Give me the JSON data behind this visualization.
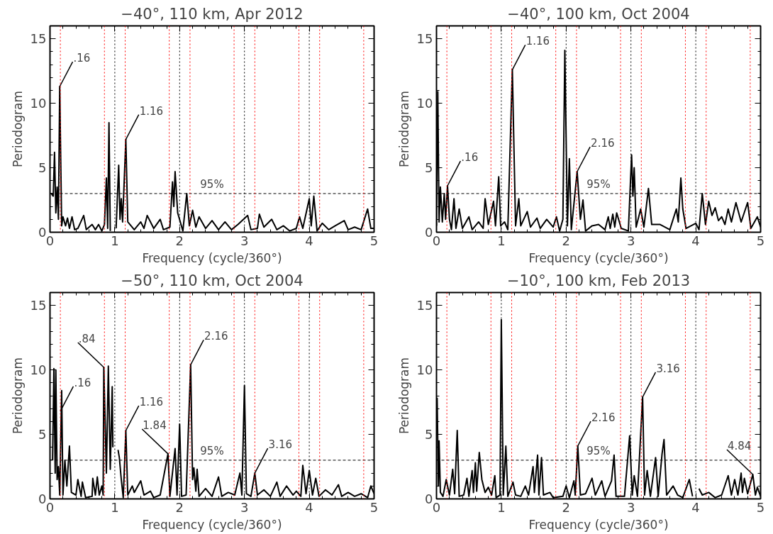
{
  "chart_data": [
    {
      "type": "line",
      "title": "−40°, 110 km, Apr 2012",
      "xlabel": "Frequency (cycle/360°)",
      "ylabel": "Periodogram",
      "xlim": [
        0,
        5
      ],
      "ylim": [
        0,
        16
      ],
      "xticks": [
        0,
        1,
        2,
        3,
        4,
        5
      ],
      "yticks": [
        0,
        5,
        10,
        15
      ],
      "grid": false,
      "marker": "none",
      "line_style": "solid",
      "x": [
        0.02,
        0.05,
        0.07,
        0.09,
        0.11,
        0.13,
        0.15,
        0.18,
        0.2,
        0.24,
        0.27,
        0.3,
        0.34,
        0.38,
        0.43,
        0.52,
        0.56,
        0.65,
        0.7,
        0.75,
        0.8,
        0.84,
        0.87,
        0.89,
        0.91,
        0.93,
        0.98,
        1.0,
        1.02,
        1.06,
        1.08,
        1.1,
        1.12,
        1.17,
        1.2,
        1.25,
        1.3,
        1.4,
        1.45,
        1.5,
        1.6,
        1.7,
        1.75,
        1.85,
        1.89,
        1.91,
        1.93,
        1.97,
        2.05,
        2.11,
        2.15,
        2.2,
        2.25,
        2.3,
        2.4,
        2.5,
        2.6,
        2.7,
        2.8,
        2.9,
        3.05,
        3.1,
        3.2,
        3.23,
        3.3,
        3.42,
        3.5,
        3.6,
        3.7,
        3.8,
        3.85,
        3.9,
        4.0,
        4.03,
        4.07,
        4.12,
        4.2,
        4.3,
        4.4,
        4.54,
        4.6,
        4.7,
        4.8,
        4.9,
        4.95,
        5.0
      ],
      "series": [
        {
          "color": "#000000",
          "values": [
            3.0,
            2.8,
            6.2,
            1.5,
            3.5,
            1.0,
            11.3,
            0.5,
            1.2,
            0.5,
            1.1,
            0.3,
            1.2,
            0.2,
            0.3,
            1.3,
            0.2,
            0.6,
            0.2,
            0.6,
            0.1,
            0.6,
            4.2,
            0.3,
            8.5,
            0.1,
            null,
            null,
            0.3,
            5.2,
            1.0,
            2.6,
            0.8,
            7.2,
            0.8,
            0.5,
            0.2,
            0.8,
            0.3,
            1.3,
            0.3,
            1.0,
            0.2,
            0.4,
            3.9,
            2.0,
            4.7,
            1.5,
            0.1,
            3.0,
            0.5,
            1.7,
            0.4,
            1.2,
            0.3,
            0.9,
            0.2,
            0.8,
            0.2,
            0.6,
            1.3,
            0.2,
            0.3,
            1.4,
            0.4,
            1.0,
            0.2,
            0.5,
            0.1,
            0.3,
            1.2,
            0.3,
            2.6,
            0.5,
            2.8,
            0.1,
            0.7,
            0.2,
            0.5,
            0.9,
            0.2,
            0.4,
            0.2,
            1.8,
            0.3,
            0.3
          ]
        }
      ],
      "ref_lines": [
        {
          "axis": "y",
          "value": 3,
          "color": "#000000",
          "line_style": "dashed"
        },
        {
          "axis": "x",
          "value": 0.16,
          "color": "#ff0000",
          "line_style": "dotted"
        },
        {
          "axis": "x",
          "value": 0.84,
          "color": "#ff0000",
          "line_style": "dotted"
        },
        {
          "axis": "x",
          "value": 1,
          "color": "#000000",
          "line_style": "dotted"
        },
        {
          "axis": "x",
          "value": 1.16,
          "color": "#ff0000",
          "line_style": "dotted"
        },
        {
          "axis": "x",
          "value": 1.84,
          "color": "#ff0000",
          "line_style": "dotted"
        },
        {
          "axis": "x",
          "value": 2,
          "color": "#000000",
          "line_style": "dotted"
        },
        {
          "axis": "x",
          "value": 2.16,
          "color": "#ff0000",
          "line_style": "dotted"
        },
        {
          "axis": "x",
          "value": 2.84,
          "color": "#ff0000",
          "line_style": "dotted"
        },
        {
          "axis": "x",
          "value": 3,
          "color": "#000000",
          "line_style": "dotted"
        },
        {
          "axis": "x",
          "value": 3.16,
          "color": "#ff0000",
          "line_style": "dotted"
        },
        {
          "axis": "x",
          "value": 3.84,
          "color": "#ff0000",
          "line_style": "dotted"
        },
        {
          "axis": "x",
          "value": 4,
          "color": "#000000",
          "line_style": "dotted"
        },
        {
          "axis": "x",
          "value": 4.16,
          "color": "#ff0000",
          "line_style": "dotted"
        },
        {
          "axis": "x",
          "value": 4.84,
          "color": "#ff0000",
          "line_style": "dotted"
        }
      ],
      "annotations": [
        "95%",
        {
          "text": ".16",
          "x": 0.15,
          "y": 11.3
        },
        {
          "text": "1.16",
          "x": 1.17,
          "y": 7.2
        }
      ]
    },
    {
      "type": "line",
      "title": "−40°, 100 km, Oct 2004",
      "xlabel": "Frequency (cycle/360°)",
      "ylabel": "Periodogram",
      "xlim": [
        0,
        5
      ],
      "ylim": [
        0,
        16
      ],
      "xticks": [
        0,
        1,
        2,
        3,
        4,
        5
      ],
      "yticks": [
        0,
        5,
        10,
        15
      ],
      "grid": false,
      "marker": "none",
      "line_style": "solid",
      "x": [
        0,
        0.02,
        0.04,
        0.06,
        0.09,
        0.12,
        0.14,
        0.17,
        0.2,
        0.23,
        0.27,
        0.3,
        0.35,
        0.4,
        0.5,
        0.55,
        0.65,
        0.72,
        0.75,
        0.8,
        0.88,
        0.91,
        0.96,
        0.99,
        1.05,
        1.1,
        1.17,
        1.22,
        1.27,
        1.3,
        1.4,
        1.45,
        1.55,
        1.6,
        1.7,
        1.8,
        1.85,
        1.9,
        1.95,
        1.98,
        2.02,
        2.05,
        2.08,
        2.17,
        2.22,
        2.26,
        2.3,
        2.4,
        2.5,
        2.6,
        2.65,
        2.68,
        2.72,
        2.75,
        2.78,
        2.85,
        2.96,
        3.01,
        3.03,
        3.05,
        3.08,
        3.15,
        3.2,
        3.27,
        3.32,
        3.45,
        3.6,
        3.7,
        3.73,
        3.77,
        3.8,
        3.85,
        4.0,
        4.05,
        4.1,
        4.15,
        4.2,
        4.25,
        4.3,
        4.35,
        4.4,
        4.45,
        4.5,
        4.55,
        4.62,
        4.7,
        4.8,
        4.85,
        4.95,
        5.0
      ],
      "series": [
        {
          "color": "#000000",
          "values": [
            0.5,
            10.9,
            0.8,
            3.5,
            0.8,
            3.0,
            1.0,
            3.6,
            1.0,
            0.2,
            2.6,
            0.3,
            1.8,
            0.3,
            1.2,
            0.2,
            0.8,
            0.3,
            2.6,
            0.6,
            2.4,
            0.5,
            4.3,
            0.5,
            0.8,
            0.2,
            12.6,
            0.5,
            2.6,
            0.5,
            1.6,
            0.4,
            1.1,
            0.3,
            1.0,
            0.4,
            1.2,
            0.1,
            1.0,
            14.1,
            0.5,
            5.7,
            0.2,
            4.7,
            1.0,
            2.5,
            0.1,
            0.5,
            0.6,
            0.2,
            1.2,
            0.3,
            1.4,
            0.4,
            1.5,
            0.3,
            0.1,
            6.0,
            2.8,
            5.0,
            0.4,
            1.8,
            0.4,
            3.4,
            0.6,
            0.6,
            0.2,
            1.8,
            0.8,
            4.2,
            1.8,
            0.3,
            0.7,
            0.2,
            3.0,
            0.6,
            2.4,
            1.3,
            1.9,
            0.9,
            1.2,
            0.6,
            1.8,
            0.8,
            2.3,
            0.8,
            2.3,
            0.3,
            1.2,
            0.4
          ]
        }
      ],
      "ref_lines": [
        {
          "axis": "y",
          "value": 3,
          "color": "#000000",
          "line_style": "dashed"
        },
        {
          "axis": "x",
          "value": 0.16,
          "color": "#ff0000",
          "line_style": "dotted"
        },
        {
          "axis": "x",
          "value": 0.84,
          "color": "#ff0000",
          "line_style": "dotted"
        },
        {
          "axis": "x",
          "value": 1,
          "color": "#000000",
          "line_style": "dotted"
        },
        {
          "axis": "x",
          "value": 1.16,
          "color": "#ff0000",
          "line_style": "dotted"
        },
        {
          "axis": "x",
          "value": 1.84,
          "color": "#ff0000",
          "line_style": "dotted"
        },
        {
          "axis": "x",
          "value": 2,
          "color": "#000000",
          "line_style": "dotted"
        },
        {
          "axis": "x",
          "value": 2.16,
          "color": "#ff0000",
          "line_style": "dotted"
        },
        {
          "axis": "x",
          "value": 2.84,
          "color": "#ff0000",
          "line_style": "dotted"
        },
        {
          "axis": "x",
          "value": 3,
          "color": "#000000",
          "line_style": "dotted"
        },
        {
          "axis": "x",
          "value": 3.16,
          "color": "#ff0000",
          "line_style": "dotted"
        },
        {
          "axis": "x",
          "value": 3.84,
          "color": "#ff0000",
          "line_style": "dotted"
        },
        {
          "axis": "x",
          "value": 4,
          "color": "#000000",
          "line_style": "dotted"
        },
        {
          "axis": "x",
          "value": 4.16,
          "color": "#ff0000",
          "line_style": "dotted"
        },
        {
          "axis": "x",
          "value": 4.84,
          "color": "#ff0000",
          "line_style": "dotted"
        }
      ],
      "annotations": [
        "95%",
        {
          "text": ".16",
          "x": 0.17,
          "y": 3.6
        },
        {
          "text": "1.16",
          "x": 1.17,
          "y": 12.6
        },
        {
          "text": "2.16",
          "x": 2.17,
          "y": 4.7
        }
      ]
    },
    {
      "type": "line",
      "title": "−50°, 110 km, Oct 2004",
      "xlabel": "Frequency (cycle/360°)",
      "ylabel": "Periodogram",
      "xlim": [
        0,
        5
      ],
      "ylim": [
        0,
        16
      ],
      "xticks": [
        0,
        1,
        2,
        3,
        4,
        5
      ],
      "yticks": [
        0,
        5,
        10,
        15
      ],
      "grid": false,
      "marker": "none",
      "line_style": "solid",
      "x": [
        0.04,
        0.06,
        0.08,
        0.09,
        0.11,
        0.13,
        0.15,
        0.18,
        0.2,
        0.23,
        0.26,
        0.3,
        0.33,
        0.4,
        0.43,
        0.48,
        0.5,
        0.55,
        0.65,
        0.66,
        0.7,
        0.73,
        0.76,
        0.8,
        0.82,
        0.83,
        0.87,
        0.9,
        0.93,
        0.96,
        0.97,
        1.0,
        1.02,
        1.05,
        1.07,
        1.1,
        1.13,
        1.17,
        1.2,
        1.27,
        1.3,
        1.4,
        1.45,
        1.55,
        1.6,
        1.7,
        1.82,
        1.85,
        1.93,
        1.96,
        2.0,
        2.03,
        2.1,
        2.17,
        2.2,
        2.22,
        2.25,
        2.27,
        2.3,
        2.4,
        2.5,
        2.6,
        2.65,
        2.75,
        2.85,
        2.93,
        2.96,
        3.0,
        3.03,
        3.1,
        3.16,
        3.2,
        3.3,
        3.4,
        3.5,
        3.55,
        3.65,
        3.75,
        3.8,
        3.87,
        3.9,
        3.95,
        4.0,
        4.05,
        4.1,
        4.15,
        4.25,
        4.35,
        4.45,
        4.5,
        4.6,
        4.7,
        4.8,
        4.9,
        4.95,
        5.0
      ],
      "series": [
        {
          "color": "#000000",
          "values": [
            3.0,
            10.1,
            2.0,
            10.0,
            1.5,
            2.5,
            0.3,
            8.4,
            0.3,
            3.0,
            1.0,
            4.1,
            0.5,
            0.3,
            1.5,
            0.2,
            1.3,
            0.1,
            0.2,
            1.6,
            0.3,
            1.7,
            0.3,
            1.0,
            0.3,
            10.2,
            2.0,
            10.3,
            2.3,
            8.7,
            4.0,
            null,
            null,
            3.8,
            3.2,
            1.5,
            0.1,
            5.3,
            0.3,
            1.0,
            0.5,
            1.4,
            0.3,
            0.6,
            0.1,
            0.3,
            3.5,
            0.2,
            3.9,
            0.3,
            5.8,
            0.2,
            0.3,
            10.4,
            1.5,
            2.4,
            0.6,
            2.3,
            0.2,
            0.8,
            0.2,
            1.7,
            0.2,
            0.5,
            0.3,
            2.0,
            0.3,
            8.8,
            0.4,
            0.2,
            2.0,
            0.3,
            0.7,
            0.2,
            1.3,
            0.2,
            1.0,
            0.3,
            0.6,
            0.2,
            2.6,
            0.4,
            2.2,
            0.3,
            1.6,
            0.2,
            0.7,
            0.3,
            1.1,
            0.2,
            0.5,
            0.2,
            0.4,
            0.1,
            1.0,
            0.4
          ]
        }
      ],
      "ref_lines": [
        {
          "axis": "y",
          "value": 3,
          "color": "#000000",
          "line_style": "dashed"
        },
        {
          "axis": "x",
          "value": 0.16,
          "color": "#ff0000",
          "line_style": "dotted"
        },
        {
          "axis": "x",
          "value": 0.84,
          "color": "#ff0000",
          "line_style": "dotted"
        },
        {
          "axis": "x",
          "value": 1,
          "color": "#000000",
          "line_style": "dotted"
        },
        {
          "axis": "x",
          "value": 1.16,
          "color": "#ff0000",
          "line_style": "dotted"
        },
        {
          "axis": "x",
          "value": 1.84,
          "color": "#ff0000",
          "line_style": "dotted"
        },
        {
          "axis": "x",
          "value": 2,
          "color": "#000000",
          "line_style": "dotted"
        },
        {
          "axis": "x",
          "value": 2.16,
          "color": "#ff0000",
          "line_style": "dotted"
        },
        {
          "axis": "x",
          "value": 2.84,
          "color": "#ff0000",
          "line_style": "dotted"
        },
        {
          "axis": "x",
          "value": 3,
          "color": "#000000",
          "line_style": "dotted"
        },
        {
          "axis": "x",
          "value": 3.16,
          "color": "#ff0000",
          "line_style": "dotted"
        },
        {
          "axis": "x",
          "value": 3.84,
          "color": "#ff0000",
          "line_style": "dotted"
        },
        {
          "axis": "x",
          "value": 4,
          "color": "#000000",
          "line_style": "dotted"
        },
        {
          "axis": "x",
          "value": 4.16,
          "color": "#ff0000",
          "line_style": "dotted"
        },
        {
          "axis": "x",
          "value": 4.84,
          "color": "#ff0000",
          "line_style": "dotted"
        }
      ],
      "annotations": [
        "95%",
        {
          "text": ".84",
          "x": 0.83,
          "y": 10.2
        },
        {
          "text": ".16",
          "x": 0.16,
          "y": 6.8
        },
        {
          "text": "1.16",
          "x": 1.17,
          "y": 5.3
        },
        {
          "text": "1.84",
          "x": 1.82,
          "y": 3.5
        },
        {
          "text": "2.16",
          "x": 2.17,
          "y": 10.4
        },
        {
          "text": "3.16",
          "x": 3.16,
          "y": 2.0
        }
      ]
    },
    {
      "type": "line",
      "title": "−10°, 100 km, Feb 2013",
      "xlabel": "Frequency (cycle/360°)",
      "ylabel": "Periodogram",
      "xlim": [
        0,
        5
      ],
      "ylim": [
        0,
        16
      ],
      "xticks": [
        0,
        1,
        2,
        3,
        4,
        5
      ],
      "yticks": [
        0,
        5,
        10,
        15
      ],
      "grid": false,
      "marker": "none",
      "line_style": "solid",
      "x": [
        0,
        0.01,
        0.03,
        0.04,
        0.06,
        0.1,
        0.15,
        0.2,
        0.25,
        0.28,
        0.32,
        0.35,
        0.42,
        0.47,
        0.5,
        0.55,
        0.57,
        0.6,
        0.62,
        0.66,
        0.7,
        0.75,
        0.8,
        0.85,
        0.9,
        0.92,
        0.98,
        1.0,
        1.03,
        1.07,
        1.1,
        1.18,
        1.22,
        1.3,
        1.37,
        1.42,
        1.49,
        1.51,
        1.56,
        1.58,
        1.62,
        1.65,
        1.75,
        1.8,
        1.95,
        2.0,
        2.05,
        2.12,
        2.14,
        2.18,
        2.22,
        2.3,
        2.4,
        2.45,
        2.55,
        2.6,
        2.7,
        2.74,
        2.77,
        2.9,
        2.98,
        3.02,
        3.05,
        3.1,
        3.18,
        3.21,
        3.25,
        3.3,
        3.38,
        3.42,
        3.48,
        3.51,
        3.55,
        3.65,
        3.72,
        3.8,
        3.9,
        3.95,
        4.0,
        4.02,
        4.05,
        4.1,
        4.2,
        4.3,
        4.4,
        4.5,
        4.55,
        4.6,
        4.65,
        4.7,
        4.72,
        4.75,
        4.8,
        4.88,
        4.92,
        4.95,
        5.0
      ],
      "series": [
        {
          "color": "#000000",
          "values": [
            6.0,
            7.8,
            1.0,
            4.5,
            0.5,
            0.2,
            1.5,
            0.3,
            2.3,
            0.4,
            5.3,
            0.2,
            0.3,
            1.6,
            0.2,
            2.2,
            0.5,
            2.8,
            0.6,
            3.6,
            1.5,
            0.5,
            0.9,
            0.3,
            1.8,
            0.1,
            0.3,
            13.9,
            0.3,
            4.1,
            0.2,
            1.3,
            0.3,
            0.2,
            1.0,
            0.3,
            2.5,
            0.5,
            3.4,
            0.3,
            3.2,
            0.3,
            0.5,
            0.1,
            0.2,
            1.0,
            0.1,
            1.4,
            0.3,
            4.1,
            0.3,
            0.4,
            1.6,
            0.3,
            1.4,
            0.2,
            1.4,
            3.4,
            0.2,
            0.2,
            4.9,
            0.3,
            1.8,
            0.2,
            7.9,
            0.3,
            2.2,
            0.2,
            3.2,
            0.2,
            3.5,
            4.6,
            0.3,
            1.0,
            0.3,
            0.1,
            1.5,
            0.2,
            null,
            null,
            0.8,
            0.3,
            0.5,
            0.1,
            0.3,
            1.8,
            0.3,
            1.5,
            0.3,
            2.0,
            0.5,
            1.6,
            0.4,
            1.9,
            0.3,
            0.9,
            0.2
          ]
        }
      ],
      "ref_lines": [
        {
          "axis": "y",
          "value": 3,
          "color": "#000000",
          "line_style": "dashed"
        },
        {
          "axis": "x",
          "value": 0.16,
          "color": "#ff0000",
          "line_style": "dotted"
        },
        {
          "axis": "x",
          "value": 0.84,
          "color": "#ff0000",
          "line_style": "dotted"
        },
        {
          "axis": "x",
          "value": 1,
          "color": "#000000",
          "line_style": "dotted"
        },
        {
          "axis": "x",
          "value": 1.16,
          "color": "#ff0000",
          "line_style": "dotted"
        },
        {
          "axis": "x",
          "value": 1.84,
          "color": "#ff0000",
          "line_style": "dotted"
        },
        {
          "axis": "x",
          "value": 2,
          "color": "#000000",
          "line_style": "dotted"
        },
        {
          "axis": "x",
          "value": 2.16,
          "color": "#ff0000",
          "line_style": "dotted"
        },
        {
          "axis": "x",
          "value": 2.84,
          "color": "#ff0000",
          "line_style": "dotted"
        },
        {
          "axis": "x",
          "value": 3,
          "color": "#000000",
          "line_style": "dotted"
        },
        {
          "axis": "x",
          "value": 3.16,
          "color": "#ff0000",
          "line_style": "dotted"
        },
        {
          "axis": "x",
          "value": 3.84,
          "color": "#ff0000",
          "line_style": "dotted"
        },
        {
          "axis": "x",
          "value": 4,
          "color": "#000000",
          "line_style": "dotted"
        },
        {
          "axis": "x",
          "value": 4.16,
          "color": "#ff0000",
          "line_style": "dotted"
        },
        {
          "axis": "x",
          "value": 4.84,
          "color": "#ff0000",
          "line_style": "dotted"
        }
      ],
      "annotations": [
        "95%",
        {
          "text": "2.16",
          "x": 2.18,
          "y": 4.1
        },
        {
          "text": "3.16",
          "x": 3.18,
          "y": 7.9
        },
        {
          "text": "4.84",
          "x": 4.88,
          "y": 1.9
        }
      ]
    }
  ]
}
